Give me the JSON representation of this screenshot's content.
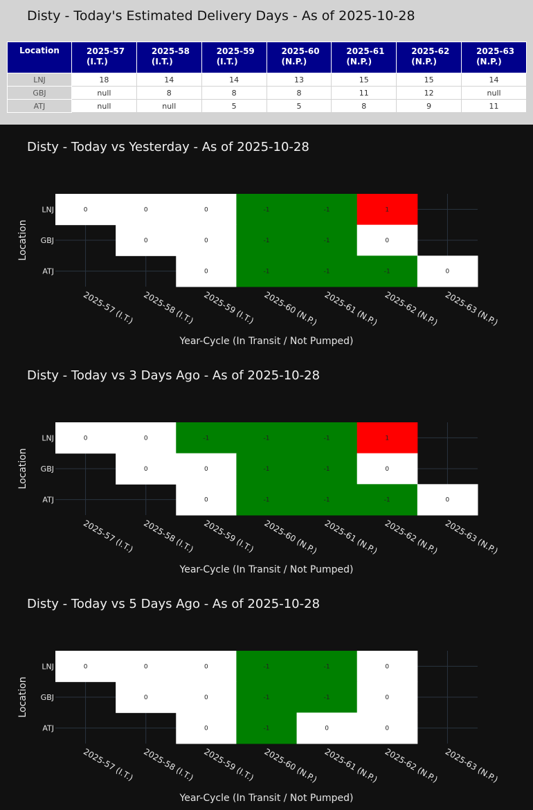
{
  "table": {
    "title": "Disty - Today's Estimated Delivery Days - As of 2025-10-28",
    "columns": [
      "Location",
      "2025-57\n(I.T.)",
      "2025-58\n(I.T.)",
      "2025-59\n(I.T.)",
      "2025-60\n(N.P.)",
      "2025-61\n(N.P.)",
      "2025-62\n(N.P.)",
      "2025-63\n(N.P.)"
    ],
    "rows": [
      [
        "LNJ",
        "18",
        "14",
        "14",
        "13",
        "15",
        "15",
        "14"
      ],
      [
        "GBJ",
        "null",
        "8",
        "8",
        "8",
        "11",
        "12",
        "null"
      ],
      [
        "ATJ",
        "null",
        "null",
        "5",
        "5",
        "8",
        "9",
        "11"
      ]
    ],
    "colors": {
      "header_bg": "#00008b",
      "header_text": "#ffffff",
      "index_bg": "#d3d3d3"
    }
  },
  "colors": {
    "positive": "#ff0000",
    "zero": "#ffffff",
    "negative": "#008000",
    "background": "#111111",
    "grid": "#2a3440"
  },
  "chart_data": [
    {
      "type": "heatmap",
      "title": "Disty - Today vs Yesterday - As of 2025-10-28",
      "xlabel": "Year-Cycle (In Transit / Not Pumped)",
      "ylabel": "Location",
      "x": [
        "2025-57 (I.T.)",
        "2025-58 (I.T.)",
        "2025-59 (I.T.)",
        "2025-60 (N.P.)",
        "2025-61 (N.P.)",
        "2025-62 (N.P.)",
        "2025-63 (N.P.)"
      ],
      "y": [
        "LNJ",
        "GBJ",
        "ATJ"
      ],
      "z": [
        [
          0,
          0,
          0,
          -1,
          -1,
          1,
          null
        ],
        [
          null,
          0,
          0,
          -1,
          -1,
          0,
          null
        ],
        [
          null,
          null,
          0,
          -1,
          -1,
          -1,
          0
        ]
      ]
    },
    {
      "type": "heatmap",
      "title": "Disty - Today vs 3 Days Ago - As of 2025-10-28",
      "xlabel": "Year-Cycle (In Transit / Not Pumped)",
      "ylabel": "Location",
      "x": [
        "2025-57 (I.T.)",
        "2025-58 (I.T.)",
        "2025-59 (I.T.)",
        "2025-60 (N.P.)",
        "2025-61 (N.P.)",
        "2025-62 (N.P.)",
        "2025-63 (N.P.)"
      ],
      "y": [
        "LNJ",
        "GBJ",
        "ATJ"
      ],
      "z": [
        [
          0,
          0,
          -1,
          -1,
          -1,
          1,
          null
        ],
        [
          null,
          0,
          0,
          -1,
          -1,
          0,
          null
        ],
        [
          null,
          null,
          0,
          -1,
          -1,
          -1,
          0
        ]
      ]
    },
    {
      "type": "heatmap",
      "title": "Disty - Today vs 5 Days Ago - As of 2025-10-28",
      "xlabel": "Year-Cycle (In Transit / Not Pumped)",
      "ylabel": "Location",
      "x": [
        "2025-57 (I.T.)",
        "2025-58 (I.T.)",
        "2025-59 (I.T.)",
        "2025-60 (N.P.)",
        "2025-61 (N.P.)",
        "2025-62 (N.P.)",
        "2025-63 (N.P.)"
      ],
      "y": [
        "LNJ",
        "GBJ",
        "ATJ"
      ],
      "z": [
        [
          0,
          0,
          0,
          -1,
          -1,
          0,
          null
        ],
        [
          null,
          0,
          0,
          -1,
          -1,
          0,
          null
        ],
        [
          null,
          null,
          0,
          -1,
          0,
          0,
          null
        ]
      ]
    }
  ]
}
